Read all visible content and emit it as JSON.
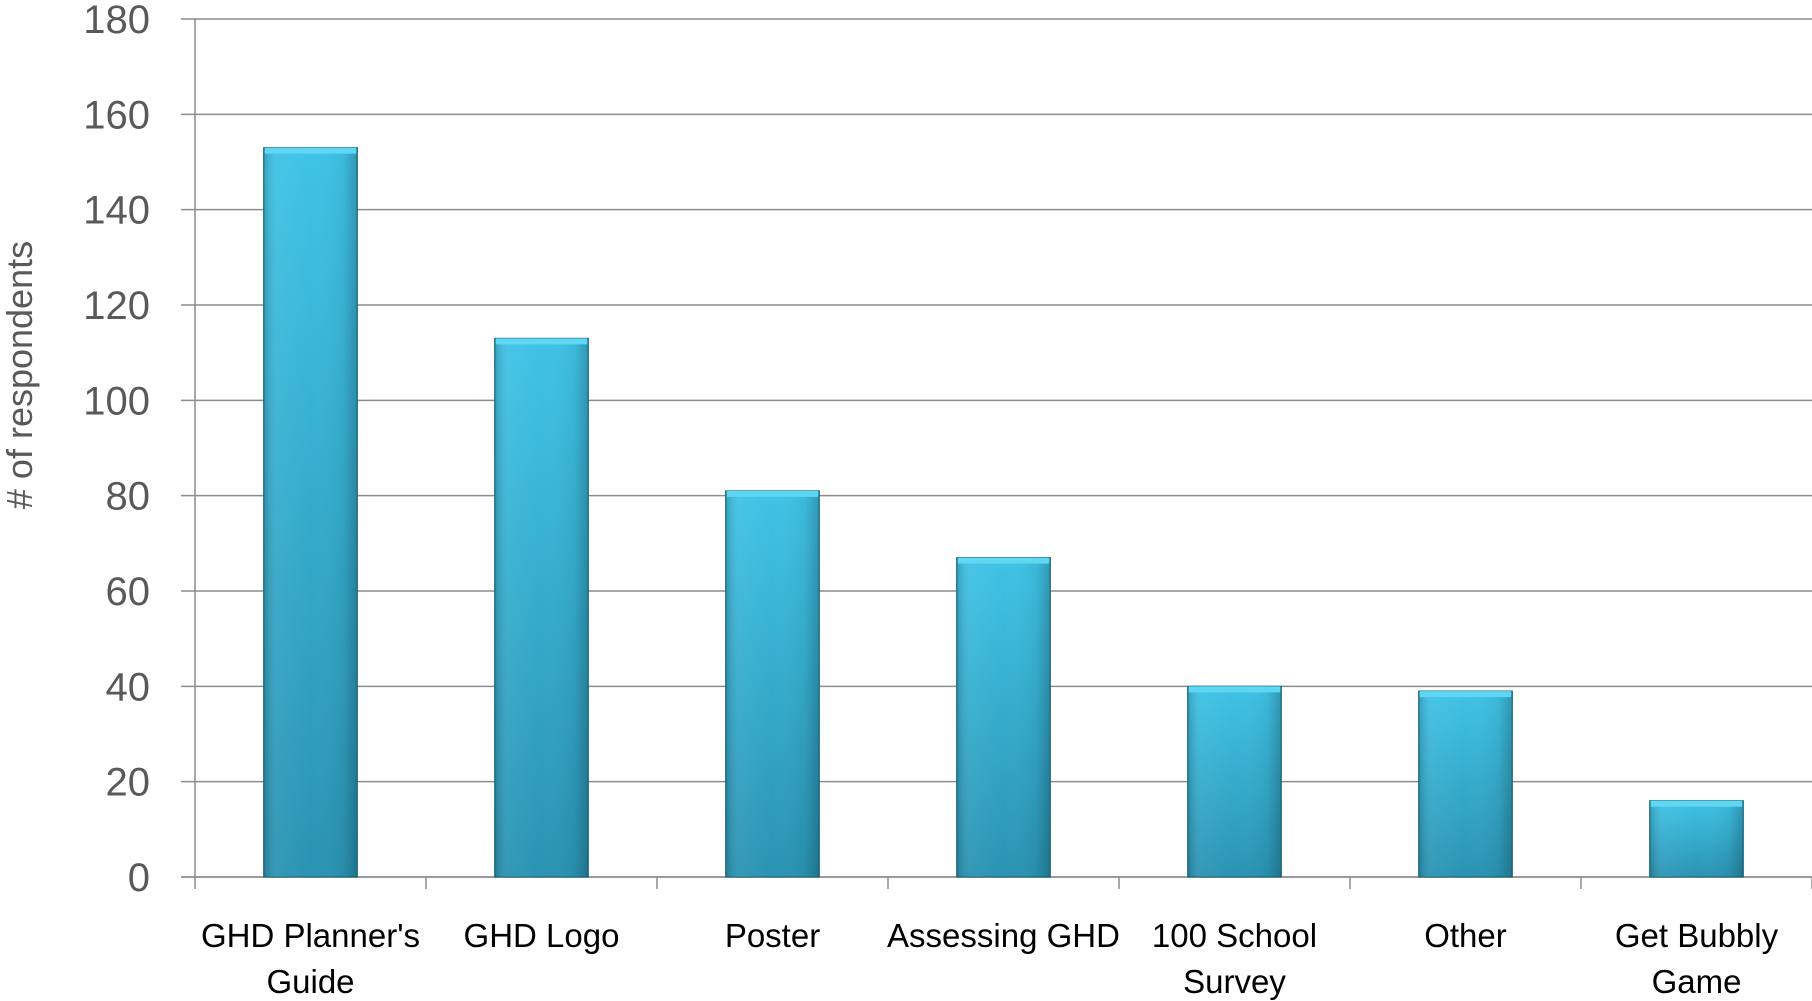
{
  "chart_data": {
    "type": "bar",
    "title": "",
    "xlabel": "",
    "ylabel": "# of respondents",
    "categories": [
      [
        "GHD Planner's",
        "Guide"
      ],
      [
        "GHD Logo"
      ],
      [
        "Poster"
      ],
      [
        "Assessing GHD"
      ],
      [
        "100 School",
        "Survey"
      ],
      [
        "Other"
      ],
      [
        "Get Bubbly",
        "Game"
      ]
    ],
    "values": [
      153,
      113,
      81,
      67,
      40,
      39,
      16
    ],
    "ylim": [
      0,
      180
    ],
    "yticks": [
      "0",
      "20",
      "40",
      "60",
      "80",
      "100",
      "120",
      "140",
      "160",
      "180"
    ],
    "grid": true,
    "legend": "none",
    "colors": {
      "bar_top": "#3fc3e6",
      "bar_bottom": "#2a93b2",
      "bar_edge": "#1d6f88",
      "grid": "#8c8c8c",
      "axis": "#8c8c8c"
    }
  }
}
